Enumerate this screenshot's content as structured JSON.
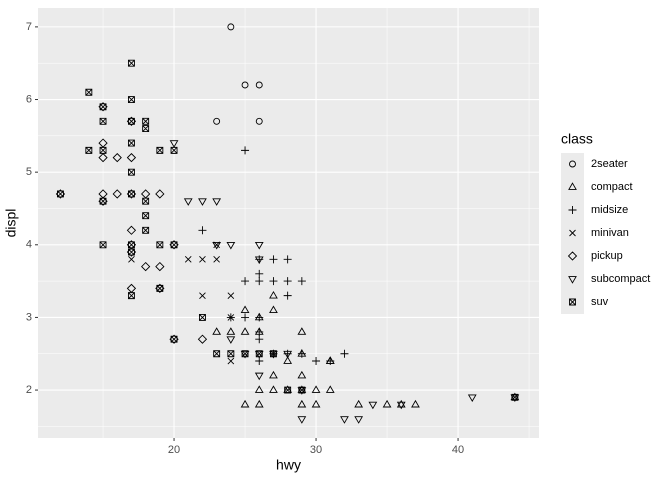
{
  "chart_data": {
    "type": "scatter",
    "x_label": "hwy",
    "y_label": "displ",
    "legend_title": "class",
    "xlim": [
      10.42,
      45.7
    ],
    "ylim": [
      1.34,
      7.26
    ],
    "xticks": [
      20,
      30,
      40
    ],
    "yticks": [
      2,
      3,
      4,
      5,
      6,
      7
    ],
    "xminor": [
      15,
      25,
      35,
      45
    ],
    "yminor": [
      1.5,
      2.5,
      3.5,
      4.5,
      5.5,
      6.5
    ],
    "grid": true,
    "legend": "right",
    "color": "#000000",
    "series": [
      {
        "name": "2seater",
        "shape": "circle",
        "x": [
          23,
          26,
          25,
          26,
          24
        ],
        "values": [
          5.7,
          5.7,
          6.2,
          6.2,
          7.0
        ]
      },
      {
        "name": "compact",
        "shape": "triangle",
        "x": [
          29,
          31,
          30,
          26,
          27,
          26,
          25,
          28,
          27,
          25,
          25,
          29,
          27,
          31,
          26,
          27,
          30,
          33,
          35,
          37,
          36,
          29,
          29,
          23,
          24,
          44,
          29,
          26,
          28,
          31
        ],
        "values": [
          1.8,
          2.0,
          2.0,
          2.8,
          3.1,
          1.8,
          1.8,
          2.0,
          2.0,
          2.8,
          3.1,
          2.2,
          2.2,
          2.4,
          3.0,
          3.3,
          1.8,
          1.8,
          1.8,
          1.8,
          1.8,
          2.0,
          2.5,
          2.8,
          2.8,
          1.9,
          2.8,
          2.0,
          2.4,
          2.4
        ]
      },
      {
        "name": "midsize",
        "shape": "plus",
        "x": [
          25,
          22,
          25,
          26,
          27,
          28,
          29,
          26,
          27,
          28,
          26,
          28,
          24,
          25,
          26,
          27,
          29,
          30,
          31,
          32,
          26,
          26,
          26,
          28
        ],
        "values": [
          5.3,
          4.2,
          3.5,
          3.5,
          3.5,
          3.5,
          3.5,
          3.8,
          3.8,
          3.8,
          3.6,
          3.3,
          3.0,
          3.0,
          3.0,
          2.5,
          2.5,
          2.4,
          2.4,
          2.5,
          2.8,
          2.7,
          2.4,
          2.5
        ]
      },
      {
        "name": "minivan",
        "shape": "cross",
        "x": [
          24,
          24,
          22,
          24,
          21,
          22,
          23,
          23,
          17
        ],
        "values": [
          2.4,
          3.0,
          3.3,
          3.3,
          3.8,
          3.8,
          3.8,
          4.0,
          3.8
        ]
      },
      {
        "name": "pickup",
        "shape": "diamond",
        "x": [
          15,
          16,
          17,
          16,
          15,
          15,
          17,
          17,
          17,
          18,
          19,
          17,
          15,
          12,
          19,
          17,
          19,
          18,
          20,
          20,
          22,
          17,
          15
        ],
        "values": [
          4.7,
          4.7,
          4.7,
          5.2,
          5.2,
          5.9,
          5.7,
          3.9,
          4.2,
          4.7,
          4.7,
          5.2,
          5.4,
          4.7,
          3.4,
          3.4,
          3.7,
          3.7,
          4.0,
          2.7,
          2.7,
          4.0,
          4.6
        ]
      },
      {
        "name": "subcompact",
        "shape": "triangle-down",
        "x": [
          26,
          26,
          23,
          24,
          22,
          20,
          21,
          23,
          26,
          26,
          28,
          29,
          32,
          33,
          29,
          34,
          36,
          41,
          44,
          27,
          25,
          24
        ],
        "values": [
          3.8,
          4.0,
          4.0,
          4.0,
          4.6,
          5.4,
          4.6,
          4.6,
          2.2,
          2.5,
          2.5,
          2.0,
          1.6,
          1.6,
          1.6,
          1.8,
          1.8,
          1.9,
          1.9,
          2.5,
          2.5,
          2.7
        ]
      },
      {
        "name": "suv",
        "shape": "square-cross",
        "x": [
          15,
          14,
          15,
          14,
          17,
          17,
          12,
          17,
          15,
          17,
          19,
          18,
          15,
          17,
          17,
          20,
          17,
          19,
          20,
          22,
          23,
          25,
          26,
          27,
          28,
          29,
          20,
          19,
          18,
          18,
          17,
          18,
          18,
          17,
          24,
          15,
          44
        ],
        "values": [
          5.3,
          5.3,
          5.7,
          6.1,
          6.5,
          4.7,
          4.7,
          5.7,
          4.0,
          4.0,
          4.0,
          4.6,
          4.6,
          5.4,
          5.0,
          4.0,
          3.3,
          3.4,
          2.7,
          3.0,
          2.5,
          2.5,
          2.5,
          2.5,
          2.0,
          2.0,
          5.3,
          5.3,
          5.7,
          5.6,
          6.0,
          4.4,
          4.2,
          3.9,
          2.5,
          5.9,
          1.9
        ]
      }
    ]
  }
}
